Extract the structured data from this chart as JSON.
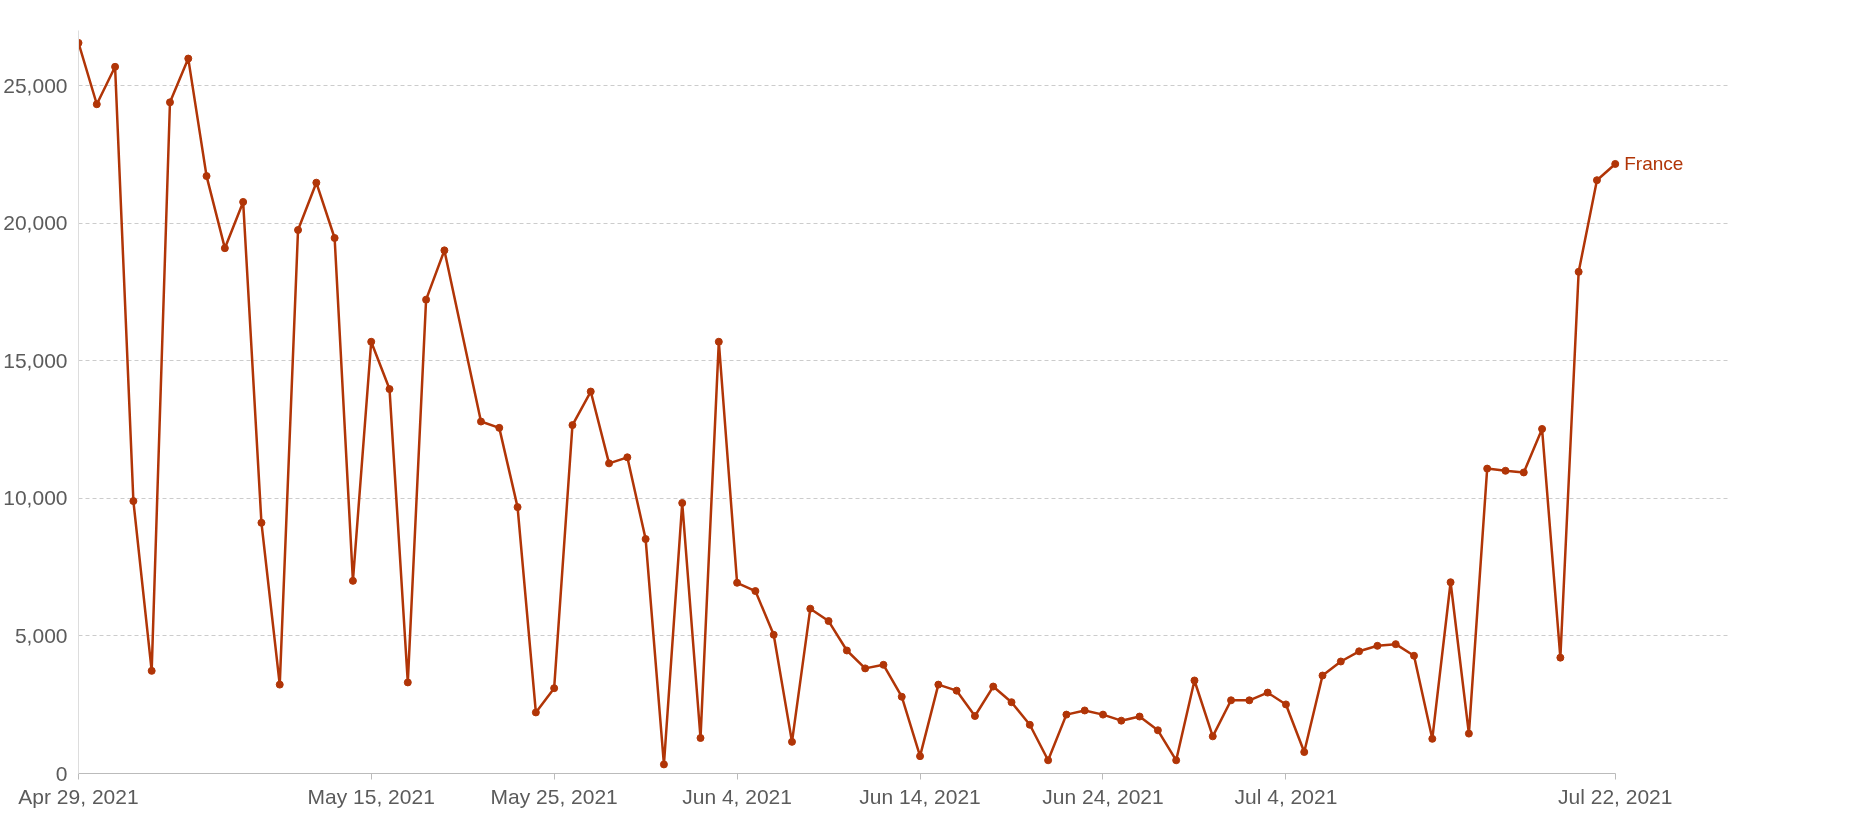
{
  "chart_data": {
    "type": "line",
    "x": [
      "2021-04-29",
      "2021-04-30",
      "2021-05-01",
      "2021-05-02",
      "2021-05-03",
      "2021-05-04",
      "2021-05-05",
      "2021-05-06",
      "2021-05-07",
      "2021-05-08",
      "2021-05-09",
      "2021-05-10",
      "2021-05-11",
      "2021-05-12",
      "2021-05-13",
      "2021-05-14",
      "2021-05-15",
      "2021-05-16",
      "2021-05-17",
      "2021-05-18",
      "2021-05-19",
      "2021-05-21",
      "2021-05-22",
      "2021-05-23",
      "2021-05-24",
      "2021-05-25",
      "2021-05-26",
      "2021-05-27",
      "2021-05-28",
      "2021-05-29",
      "2021-05-30",
      "2021-05-31",
      "2021-06-01",
      "2021-06-02",
      "2021-06-03",
      "2021-06-04",
      "2021-06-05",
      "2021-06-06",
      "2021-06-07",
      "2021-06-08",
      "2021-06-09",
      "2021-06-10",
      "2021-06-11",
      "2021-06-12",
      "2021-06-13",
      "2021-06-14",
      "2021-06-15",
      "2021-06-16",
      "2021-06-17",
      "2021-06-18",
      "2021-06-19",
      "2021-06-20",
      "2021-06-21",
      "2021-06-22",
      "2021-06-23",
      "2021-06-24",
      "2021-06-25",
      "2021-06-26",
      "2021-06-27",
      "2021-06-28",
      "2021-06-29",
      "2021-06-30",
      "2021-07-01",
      "2021-07-02",
      "2021-07-03",
      "2021-07-04",
      "2021-07-05",
      "2021-07-06",
      "2021-07-07",
      "2021-07-08",
      "2021-07-09",
      "2021-07-10",
      "2021-07-11",
      "2021-07-12",
      "2021-07-13",
      "2021-07-14",
      "2021-07-15",
      "2021-07-16",
      "2021-07-17",
      "2021-07-18",
      "2021-07-19",
      "2021-07-20",
      "2021-07-21",
      "2021-07-22"
    ],
    "series": [
      {
        "name": "France",
        "color": "#b13507",
        "values": [
          26550,
          24320,
          25680,
          9900,
          3730,
          24390,
          25980,
          21710,
          19090,
          20770,
          9110,
          3230,
          19750,
          21470,
          19460,
          7000,
          15690,
          13970,
          3310,
          17220,
          19010,
          12790,
          12560,
          9680,
          2220,
          3100,
          12660,
          13880,
          11270,
          11490,
          8520,
          330,
          9830,
          1290,
          15690,
          6930,
          6630,
          5040,
          1150,
          5990,
          5540,
          4470,
          3820,
          3950,
          2790,
          630,
          3230,
          3010,
          2090,
          3160,
          2590,
          1770,
          480,
          2140,
          2290,
          2140,
          1920,
          2070,
          1570,
          480,
          3380,
          1350,
          2660,
          2660,
          2940,
          2510,
          780,
          3560,
          4070,
          4440,
          4640,
          4700,
          4280,
          1260,
          6950,
          1450,
          11080,
          11000,
          10940,
          12520,
          4210,
          18230,
          21560,
          22150
        ]
      }
    ],
    "xlim": [
      "2021-04-29",
      "2021-07-22"
    ],
    "xticks": [
      {
        "value": "2021-04-29",
        "label": "Apr 29, 2021"
      },
      {
        "value": "2021-05-15",
        "label": "May 15, 2021"
      },
      {
        "value": "2021-05-25",
        "label": "May 25, 2021"
      },
      {
        "value": "2021-06-04",
        "label": "Jun 4, 2021"
      },
      {
        "value": "2021-06-14",
        "label": "Jun 14, 2021"
      },
      {
        "value": "2021-06-24",
        "label": "Jun 24, 2021"
      },
      {
        "value": "2021-07-04",
        "label": "Jul 4, 2021"
      },
      {
        "value": "2021-07-22",
        "label": "Jul 22, 2021"
      }
    ],
    "yticks": [
      0,
      {
        "value": 5000,
        "label": "5,000"
      },
      {
        "value": 10000,
        "label": "10,000"
      },
      {
        "value": 15000,
        "label": "15,000"
      },
      {
        "value": 20000,
        "label": "20,000"
      },
      {
        "value": 25000,
        "label": "25,000"
      }
    ],
    "ylim": [
      0,
      27000
    ],
    "grid": "y",
    "marker": "circle",
    "line_style": "solid"
  }
}
